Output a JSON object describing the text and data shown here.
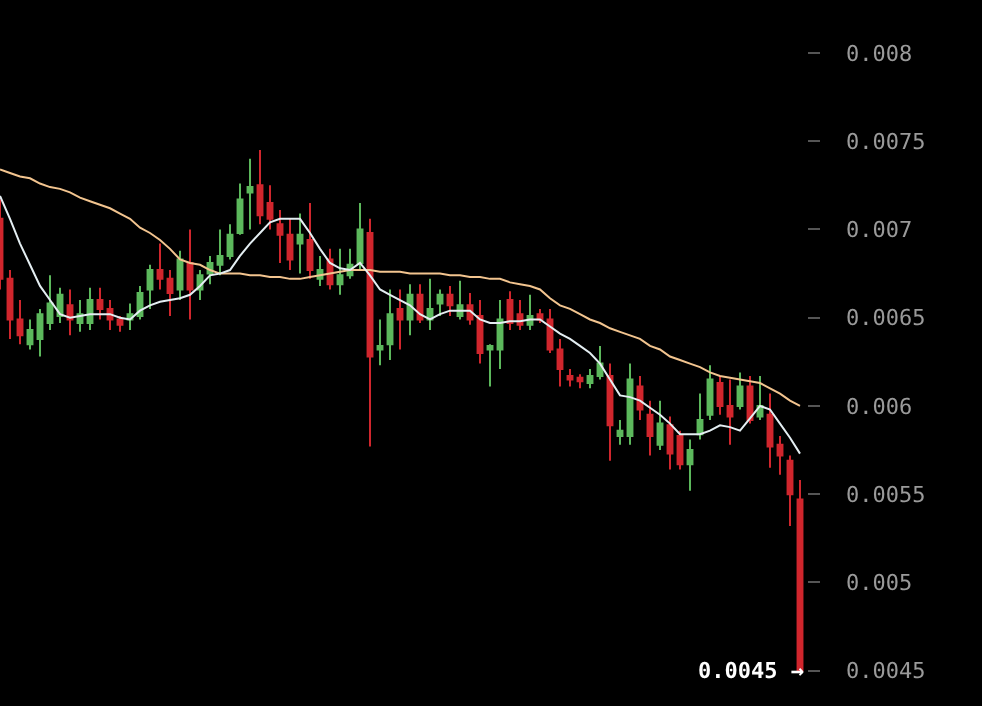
{
  "chart_data": {
    "type": "candlestick",
    "categories": [
      null,
      null,
      null,
      null,
      null,
      null,
      null,
      null,
      null,
      null,
      null,
      null,
      null,
      null,
      null,
      null,
      null,
      null,
      null,
      null,
      null,
      null,
      null,
      null,
      null,
      null,
      null,
      null,
      null,
      null,
      null,
      null,
      null,
      null,
      null,
      null,
      null,
      null,
      null,
      null,
      null,
      null,
      null,
      null,
      null,
      null,
      null,
      null,
      null,
      null,
      null,
      null,
      null,
      null,
      null,
      null,
      null,
      null,
      null,
      null,
      null,
      null,
      null,
      null,
      null,
      null,
      null,
      null,
      null,
      null,
      null,
      null,
      null,
      null,
      null,
      null,
      null,
      null,
      null,
      null,
      null
    ],
    "ohlc": [
      [
        0.00706,
        0.00717,
        0.00666,
        0.00672
      ],
      [
        0.00672,
        0.00677,
        0.00638,
        0.00649
      ],
      [
        0.00649,
        0.0066,
        0.00635,
        0.0064
      ],
      [
        0.00635,
        0.00649,
        0.00632,
        0.00643
      ],
      [
        0.00638,
        0.00655,
        0.00628,
        0.00652
      ],
      [
        0.00647,
        0.00674,
        0.00643,
        0.00658
      ],
      [
        0.00651,
        0.00667,
        0.00647,
        0.00663
      ],
      [
        0.00657,
        0.00666,
        0.0064,
        0.00649
      ],
      [
        0.00647,
        0.0066,
        0.00642,
        0.00652
      ],
      [
        0.00647,
        0.00667,
        0.00643,
        0.0066
      ],
      [
        0.0066,
        0.00667,
        0.00649,
        0.00655
      ],
      [
        0.00655,
        0.0066,
        0.00643,
        0.00649
      ],
      [
        0.00649,
        0.00651,
        0.00642,
        0.00646
      ],
      [
        0.00649,
        0.00658,
        0.00643,
        0.00652
      ],
      [
        0.00651,
        0.00668,
        0.00649,
        0.00664
      ],
      [
        0.00666,
        0.0068,
        0.00655,
        0.00677
      ],
      [
        0.00677,
        0.00692,
        0.00666,
        0.00672
      ],
      [
        0.00672,
        0.00677,
        0.00651,
        0.00664
      ],
      [
        0.00666,
        0.00688,
        0.0066,
        0.00683
      ],
      [
        0.00681,
        0.007,
        0.00649,
        0.00666
      ],
      [
        0.00666,
        0.00677,
        0.0066,
        0.00674
      ],
      [
        0.00675,
        0.00685,
        0.00669,
        0.00681
      ],
      [
        0.0068,
        0.007,
        0.00674,
        0.00685
      ],
      [
        0.00685,
        0.00703,
        0.00683,
        0.00697
      ],
      [
        0.00698,
        0.00726,
        0.00697,
        0.00717
      ],
      [
        0.00721,
        0.0074,
        0.007,
        0.00724
      ],
      [
        0.00725,
        0.00745,
        0.00703,
        0.00708
      ],
      [
        0.00715,
        0.00725,
        0.007,
        0.00706
      ],
      [
        0.00703,
        0.00711,
        0.00681,
        0.00697
      ],
      [
        0.00697,
        0.00706,
        0.00677,
        0.00683
      ],
      [
        0.00692,
        0.00709,
        0.00675,
        0.00697
      ],
      [
        0.00694,
        0.00715,
        0.00672,
        0.00677
      ],
      [
        0.00672,
        0.00685,
        0.00668,
        0.00677
      ],
      [
        0.00683,
        0.00689,
        0.00666,
        0.00669
      ],
      [
        0.00669,
        0.00689,
        0.00663,
        0.00674
      ],
      [
        0.00674,
        0.00689,
        0.00672,
        0.0068
      ],
      [
        0.00681,
        0.00715,
        0.00677,
        0.007
      ],
      [
        0.00698,
        0.00706,
        0.00577,
        0.00628
      ],
      [
        0.00632,
        0.00649,
        0.00623,
        0.00634
      ],
      [
        0.00635,
        0.00666,
        0.00626,
        0.00652
      ],
      [
        0.00655,
        0.00666,
        0.00632,
        0.00649
      ],
      [
        0.00649,
        0.00669,
        0.0064,
        0.00663
      ],
      [
        0.00663,
        0.00669,
        0.00647,
        0.00649
      ],
      [
        0.00649,
        0.00672,
        0.00643,
        0.00655
      ],
      [
        0.00658,
        0.00666,
        0.00651,
        0.00663
      ],
      [
        0.00663,
        0.00668,
        0.00651,
        0.00657
      ],
      [
        0.00651,
        0.00671,
        0.00649,
        0.00657
      ],
      [
        0.00657,
        0.00664,
        0.00646,
        0.00649
      ],
      [
        0.00651,
        0.0066,
        0.00624,
        0.0063
      ],
      [
        0.00632,
        0.00635,
        0.00611,
        0.00634
      ],
      [
        0.00632,
        0.0066,
        0.00621,
        0.00649
      ],
      [
        0.0066,
        0.00665,
        0.00643,
        0.00647
      ],
      [
        0.00652,
        0.0066,
        0.00643,
        0.00646
      ],
      [
        0.00646,
        0.00663,
        0.00643,
        0.00651
      ],
      [
        0.00652,
        0.00655,
        0.00647,
        0.00649
      ],
      [
        0.00649,
        0.00655,
        0.0063,
        0.00632
      ],
      [
        0.00632,
        0.00638,
        0.00611,
        0.00621
      ],
      [
        0.00617,
        0.00621,
        0.00611,
        0.00615
      ],
      [
        0.00616,
        0.00618,
        0.0061,
        0.00614
      ],
      [
        0.00613,
        0.00621,
        0.0061,
        0.00617
      ],
      [
        0.00617,
        0.00634,
        0.00615,
        0.00624
      ],
      [
        0.00617,
        0.00624,
        0.00569,
        0.00589
      ],
      [
        0.00583,
        0.00592,
        0.00578,
        0.00586
      ],
      [
        0.00583,
        0.00624,
        0.00578,
        0.00615
      ],
      [
        0.00611,
        0.00617,
        0.00592,
        0.00598
      ],
      [
        0.00595,
        0.00603,
        0.00572,
        0.00583
      ],
      [
        0.00578,
        0.00603,
        0.00575,
        0.0059
      ],
      [
        0.00589,
        0.00594,
        0.00564,
        0.00573
      ],
      [
        0.00583,
        0.00586,
        0.00564,
        0.00567
      ],
      [
        0.00567,
        0.00581,
        0.00552,
        0.00575
      ],
      [
        0.00584,
        0.00607,
        0.00581,
        0.00592
      ],
      [
        0.00595,
        0.00623,
        0.00592,
        0.00615
      ],
      [
        0.00613,
        0.00617,
        0.00595,
        0.006
      ],
      [
        0.006,
        0.00615,
        0.00578,
        0.00594
      ],
      [
        0.006,
        0.00619,
        0.00598,
        0.00611
      ],
      [
        0.00611,
        0.00617,
        0.0059,
        0.00592
      ],
      [
        0.00594,
        0.00617,
        0.00592,
        0.006
      ],
      [
        0.00595,
        0.00607,
        0.00565,
        0.00577
      ],
      [
        0.00578,
        0.00583,
        0.00561,
        0.00572
      ],
      [
        0.00569,
        0.00572,
        0.00532,
        0.0055
      ],
      [
        0.00547,
        0.00558,
        0.0045,
        0.0045
      ]
    ],
    "colors": [
      "#d0262d",
      "#d0262d",
      "#d0262d",
      "#5cb85c",
      "#5cb85c",
      "#5cb85c",
      "#5cb85c",
      "#d0262d",
      "#5cb85c",
      "#5cb85c",
      "#d0262d",
      "#d0262d",
      "#d0262d",
      "#5cb85c",
      "#5cb85c",
      "#5cb85c",
      "#d0262d",
      "#d0262d",
      "#5cb85c",
      "#d0262d",
      "#5cb85c",
      "#5cb85c",
      "#5cb85c",
      "#5cb85c",
      "#5cb85c",
      "#5cb85c",
      "#d0262d",
      "#d0262d",
      "#d0262d",
      "#d0262d",
      "#5cb85c",
      "#d0262d",
      "#5cb85c",
      "#d0262d",
      "#5cb85c",
      "#5cb85c",
      "#5cb85c",
      "#d0262d",
      "#5cb85c",
      "#5cb85c",
      "#d0262d",
      "#5cb85c",
      "#d0262d",
      "#5cb85c",
      "#5cb85c",
      "#d0262d",
      "#5cb85c",
      "#d0262d",
      "#d0262d",
      "#5cb85c",
      "#5cb85c",
      "#d0262d",
      "#d0262d",
      "#5cb85c",
      "#d0262d",
      "#d0262d",
      "#d0262d",
      "#d0262d",
      "#d0262d",
      "#5cb85c",
      "#5cb85c",
      "#d0262d",
      "#5cb85c",
      "#5cb85c",
      "#d0262d",
      "#d0262d",
      "#5cb85c",
      "#d0262d",
      "#d0262d",
      "#5cb85c",
      "#5cb85c",
      "#5cb85c",
      "#d0262d",
      "#d0262d",
      "#5cb85c",
      "#d0262d",
      "#5cb85c",
      "#d0262d",
      "#d0262d",
      "#d0262d",
      "#d0262d"
    ],
    "series": [
      {
        "type": "line",
        "color": "#f2c48f",
        "values": [
          0.00734,
          0.00732,
          0.0073,
          0.00729,
          0.00726,
          0.00724,
          0.00723,
          0.00721,
          0.00718,
          0.00716,
          0.00714,
          0.00712,
          0.00709,
          0.00706,
          0.00701,
          0.00698,
          0.00694,
          0.00689,
          0.00683,
          0.00681,
          0.0068,
          0.00677,
          0.00675,
          0.00675,
          0.00675,
          0.00674,
          0.00674,
          0.00673,
          0.00673,
          0.00672,
          0.00672,
          0.00673,
          0.00674,
          0.00675,
          0.00676,
          0.00677,
          0.00677,
          0.00677,
          0.00676,
          0.00676,
          0.00676,
          0.00675,
          0.00675,
          0.00675,
          0.00675,
          0.00674,
          0.00674,
          0.00673,
          0.00673,
          0.00672,
          0.00672,
          0.0067,
          0.00669,
          0.00668,
          0.00666,
          0.00661,
          0.00657,
          0.00655,
          0.00652,
          0.00649,
          0.00647,
          0.00644,
          0.00642,
          0.0064,
          0.00638,
          0.00634,
          0.00632,
          0.00628,
          0.00626,
          0.00624,
          0.00622,
          0.00619,
          0.00617,
          0.00616,
          0.00615,
          0.00614,
          0.00613,
          0.0061,
          0.00607,
          0.00603,
          0.006
        ]
      },
      {
        "type": "line",
        "color": "#e4eef2",
        "values": [
          0.00719,
          0.00706,
          0.00692,
          0.0068,
          0.00668,
          0.0066,
          0.00652,
          0.0065,
          0.00651,
          0.00652,
          0.00652,
          0.00652,
          0.0065,
          0.00649,
          0.00654,
          0.00657,
          0.00659,
          0.0066,
          0.00661,
          0.00663,
          0.00668,
          0.00674,
          0.00675,
          0.00677,
          0.00685,
          0.00692,
          0.00698,
          0.00704,
          0.00706,
          0.00706,
          0.00706,
          0.00698,
          0.00689,
          0.00681,
          0.00678,
          0.00677,
          0.00681,
          0.00674,
          0.00666,
          0.00663,
          0.0066,
          0.00657,
          0.00652,
          0.00649,
          0.00652,
          0.00654,
          0.00654,
          0.00654,
          0.00649,
          0.00647,
          0.00647,
          0.00648,
          0.00648,
          0.00649,
          0.00649,
          0.00645,
          0.00641,
          0.00638,
          0.00634,
          0.0063,
          0.00624,
          0.00615,
          0.00606,
          0.00605,
          0.00603,
          0.00599,
          0.00595,
          0.0059,
          0.00584,
          0.00584,
          0.00584,
          0.00586,
          0.00589,
          0.00588,
          0.00586,
          0.00593,
          0.006,
          0.00598,
          0.0059,
          0.00582,
          0.00573
        ]
      }
    ],
    "ylim": [
      0.0043,
      0.0083
    ],
    "yticks": [
      0.0045,
      0.005,
      0.0055,
      0.006,
      0.0065,
      0.007,
      0.0075,
      0.008
    ],
    "legend": false,
    "annotations": [
      "0.0045 →"
    ]
  }
}
